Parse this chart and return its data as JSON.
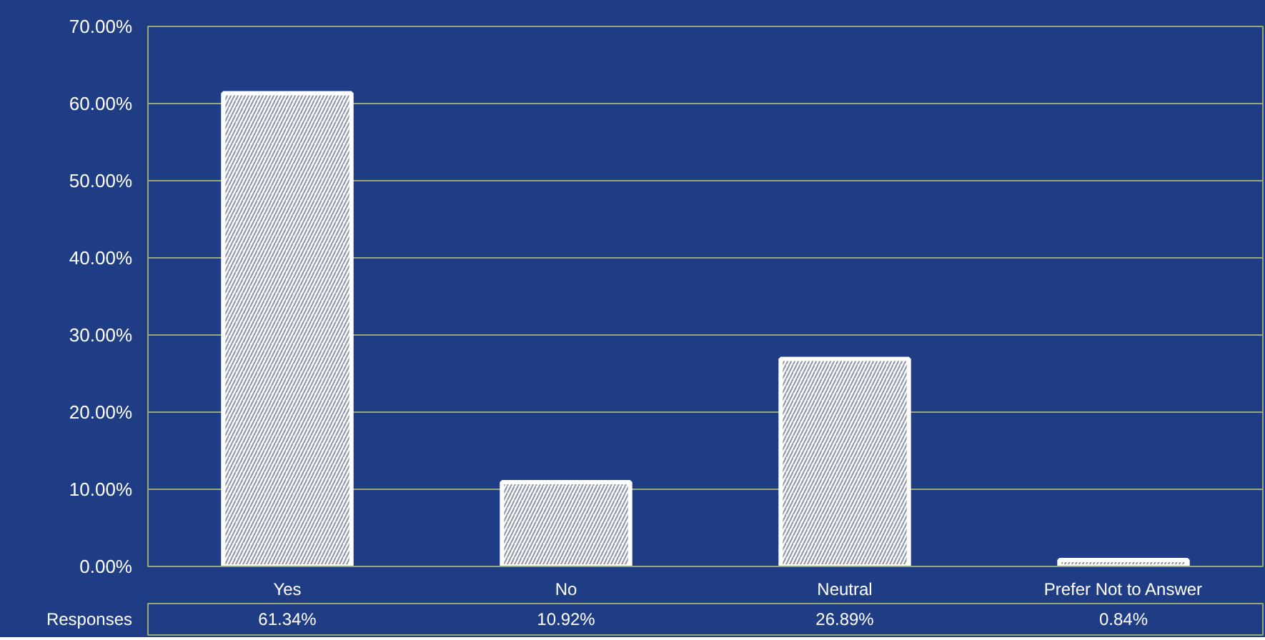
{
  "chart_data": {
    "type": "bar",
    "categories": [
      "Yes",
      "No",
      "Neutral",
      "Prefer Not to Answer"
    ],
    "series": [
      {
        "name": "Responses",
        "color": "#ffffff",
        "values": [
          61.34,
          10.92,
          26.89,
          0.84
        ],
        "value_labels": [
          "61.34%",
          "10.92%",
          "26.89%",
          "0.84%"
        ]
      }
    ],
    "ylim": [
      0,
      70
    ],
    "yticks": [
      {
        "value": 0,
        "label": "0.00%"
      },
      {
        "value": 10,
        "label": "10.00%"
      },
      {
        "value": 20,
        "label": "20.00%"
      },
      {
        "value": 30,
        "label": "30.00%"
      },
      {
        "value": 40,
        "label": "40.00%"
      },
      {
        "value": 50,
        "label": "50.00%"
      },
      {
        "value": 60,
        "label": "60.00%"
      },
      {
        "value": 70,
        "label": "70.00%"
      }
    ],
    "grid": "y"
  }
}
